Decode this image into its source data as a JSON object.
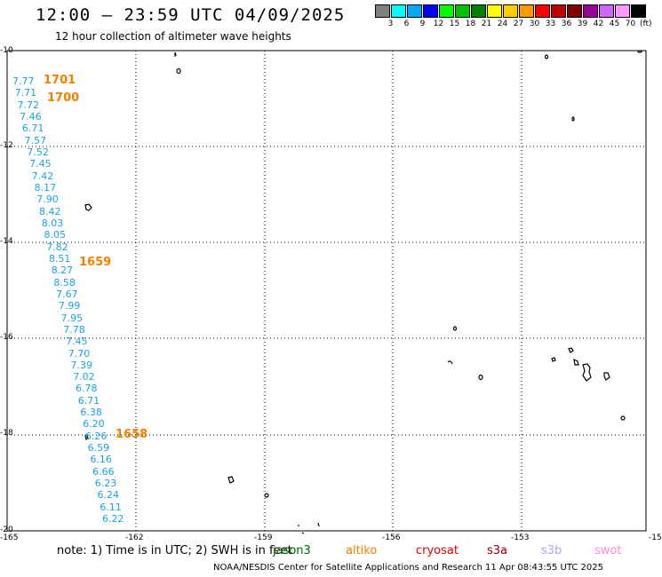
{
  "title": "12:00 – 23:59 UTC 04/09/2025",
  "subtitle": "12 hour collection of altimeter wave heights",
  "scale": {
    "colors": [
      "#808080",
      "#00ffff",
      "#00aaff",
      "#0000ff",
      "#00ff00",
      "#00c000",
      "#008000",
      "#ffff00",
      "#ffcc00",
      "#ff9900",
      "#ff0000",
      "#c00000",
      "#800000",
      "#990099",
      "#cc66ff",
      "#ff99ff",
      "#000000"
    ],
    "labels": [
      "3",
      "6",
      "9",
      "12",
      "15",
      "18",
      "21",
      "24",
      "27",
      "30",
      "33",
      "36",
      "39",
      "42",
      "45",
      "70"
    ],
    "unit": "(ft)"
  },
  "axes": {
    "x_ticks": [
      "-165",
      "-162",
      "-159",
      "-156",
      "-153",
      "-15"
    ],
    "y_ticks": [
      "-10",
      "-12",
      "-14",
      "-16",
      "-18",
      "-20"
    ]
  },
  "wave_heights": [
    "7.77",
    "7.71",
    "7.72",
    "7.46",
    "6.71",
    "7.57",
    "7.52",
    "7.45",
    "7.42",
    "8.17",
    "7.90",
    "8.42",
    "8.03",
    "8.05",
    "7.82",
    "8.51",
    "8.27",
    "8.58",
    "7.67",
    "7.99",
    "7.95",
    "7.78",
    "7.45",
    "7.70",
    "7.39",
    "7.02",
    "6.78",
    "6.71",
    "6.38",
    "6.20",
    "6.26",
    "6.59",
    "6.16",
    "6.66",
    "6.23",
    "6.24",
    "6.11",
    "6.22"
  ],
  "track_times": [
    "1701",
    "1700",
    "1659",
    "1658"
  ],
  "note": "note:  1) Time is in UTC;  2) SWH is in feet",
  "legend": [
    {
      "name": "jason3",
      "color": "#006400"
    },
    {
      "name": "altiko",
      "color": "#f08000"
    },
    {
      "name": "cryosat",
      "color": "#e00000"
    },
    {
      "name": "s3a",
      "color": "#8b0000"
    },
    {
      "name": "s3b",
      "color": "#b0a0ff"
    },
    {
      "name": "swot",
      "color": "#ff88dd"
    }
  ],
  "credit": "NOAA/NESDIS Center for Satellite Applications and Research     11 Apr 08:43:55 UTC 2025"
}
